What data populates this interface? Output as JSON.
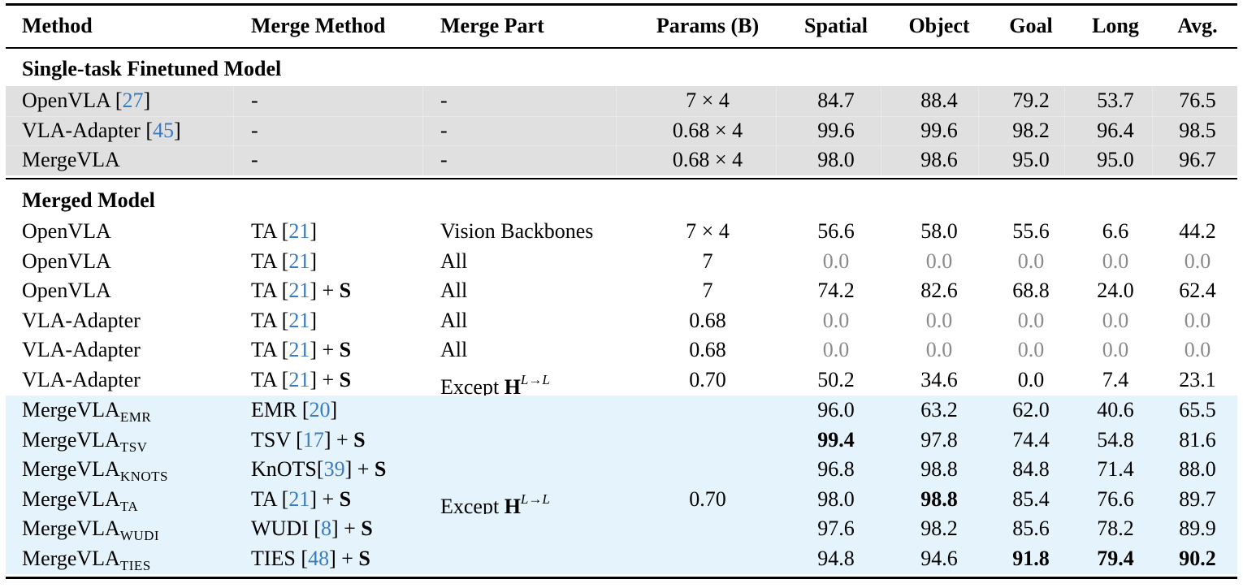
{
  "table": {
    "headers": {
      "method": "Method",
      "merge_method": "Merge Method",
      "merge_part": "Merge Part",
      "params": "Params (B)",
      "spatial": "Spatial",
      "object": "Object",
      "goal": "Goal",
      "long": "Long",
      "avg": "Avg."
    },
    "sections": {
      "single": "Single-task Finetuned Model",
      "merged": "Merged Model"
    },
    "single_rows": [
      {
        "method": "OpenVLA",
        "cite": "27",
        "merge_method": "-",
        "merge_part": "-",
        "params": "7 × 4",
        "spatial": "84.7",
        "object": "88.4",
        "goal": "79.2",
        "long": "53.7",
        "avg": "76.5"
      },
      {
        "method": "VLA-Adapter",
        "cite": "45",
        "merge_method": "-",
        "merge_part": "-",
        "params": "0.68 × 4",
        "spatial": "99.6",
        "object": "99.6",
        "goal": "98.2",
        "long": "96.4",
        "avg": "98.5"
      },
      {
        "method": "MergeVLA",
        "cite": "",
        "merge_method": "-",
        "merge_part": "-",
        "params": "0.68 × 4",
        "spatial": "98.0",
        "object": "98.6",
        "goal": "95.0",
        "long": "95.0",
        "avg": "96.7"
      }
    ],
    "merged_rows": [
      {
        "method": "OpenVLA",
        "mm_name": "TA",
        "mm_cite": "21",
        "mm_plus": "",
        "merge_part": "Vision Backbones",
        "params": "7 × 4",
        "spatial": "56.6",
        "object": "58.0",
        "goal": "55.6",
        "long": "6.6",
        "avg": "44.2"
      },
      {
        "method": "OpenVLA",
        "mm_name": "TA",
        "mm_cite": "21",
        "mm_plus": "",
        "merge_part": "All",
        "params": "7",
        "spatial": "0.0",
        "object": "0.0",
        "goal": "0.0",
        "long": "0.0",
        "avg": "0.0"
      },
      {
        "method": "OpenVLA",
        "mm_name": "TA",
        "mm_cite": "21",
        "mm_plus": "S",
        "merge_part": "All",
        "params": "7",
        "spatial": "74.2",
        "object": "82.6",
        "goal": "68.8",
        "long": "24.0",
        "avg": "62.4"
      },
      {
        "method": "VLA-Adapter",
        "mm_name": "TA",
        "mm_cite": "21",
        "mm_plus": "",
        "merge_part": "All",
        "params": "0.68",
        "spatial": "0.0",
        "object": "0.0",
        "goal": "0.0",
        "long": "0.0",
        "avg": "0.0"
      },
      {
        "method": "VLA-Adapter",
        "mm_name": "TA",
        "mm_cite": "21",
        "mm_plus": "S",
        "merge_part": "All",
        "params": "0.68",
        "spatial": "0.0",
        "object": "0.0",
        "goal": "0.0",
        "long": "0.0",
        "avg": "0.0"
      },
      {
        "method": "VLA-Adapter",
        "mm_name": "TA",
        "mm_cite": "21",
        "mm_plus": "S",
        "merge_part": "Except",
        "merge_part_math": "H",
        "merge_part_sup": "L→L",
        "params": "0.70",
        "spatial": "50.2",
        "object": "34.6",
        "goal": "0.0",
        "long": "7.4",
        "avg": "23.1"
      }
    ],
    "mergevla_rows": [
      {
        "method": "MergeVLA",
        "sub": "EMR",
        "mm_name": "EMR",
        "mm_cite": "20",
        "mm_plus": "",
        "spatial": "96.0",
        "object": "63.2",
        "goal": "62.0",
        "long": "40.6",
        "avg": "65.5"
      },
      {
        "method": "MergeVLA",
        "sub": "TSV",
        "mm_name": "TSV",
        "mm_cite": "17",
        "mm_plus": "S",
        "spatial": "99.4",
        "object": "97.8",
        "goal": "74.4",
        "long": "54.8",
        "avg": "81.6"
      },
      {
        "method": "MergeVLA",
        "sub": "KnOTS",
        "mm_name": "KnOTS",
        "mm_cite": "39",
        "mm_plus": "S",
        "spatial": "96.8",
        "object": "98.8",
        "goal": "84.8",
        "long": "71.4",
        "avg": "88.0"
      },
      {
        "method": "MergeVLA",
        "sub": "TA",
        "mm_name": "TA",
        "mm_cite": "21",
        "mm_plus": "S",
        "spatial": "98.0",
        "object": "98.8",
        "goal": "85.4",
        "long": "76.6",
        "avg": "89.7"
      },
      {
        "method": "MergeVLA",
        "sub": "WUDI",
        "mm_name": "WUDI",
        "mm_cite": "8",
        "mm_plus": "S",
        "spatial": "97.6",
        "object": "98.2",
        "goal": "85.6",
        "long": "78.2",
        "avg": "89.9"
      },
      {
        "method": "MergeVLA",
        "sub": "TIES",
        "mm_name": "TIES",
        "mm_cite": "48",
        "mm_plus": "S",
        "spatial": "94.8",
        "object": "94.6",
        "goal": "91.8",
        "long": "79.4",
        "avg": "90.2"
      }
    ],
    "mergevla_shared": {
      "merge_part": "Except",
      "merge_part_math": "H",
      "merge_part_sup": "L→L",
      "params": "0.70"
    },
    "colors": {
      "citation": "#3b7bbf",
      "zero_value": "#8a8a8a",
      "single_band": "#e0e0e0",
      "mergevla_band": "#e4f3fc"
    }
  }
}
